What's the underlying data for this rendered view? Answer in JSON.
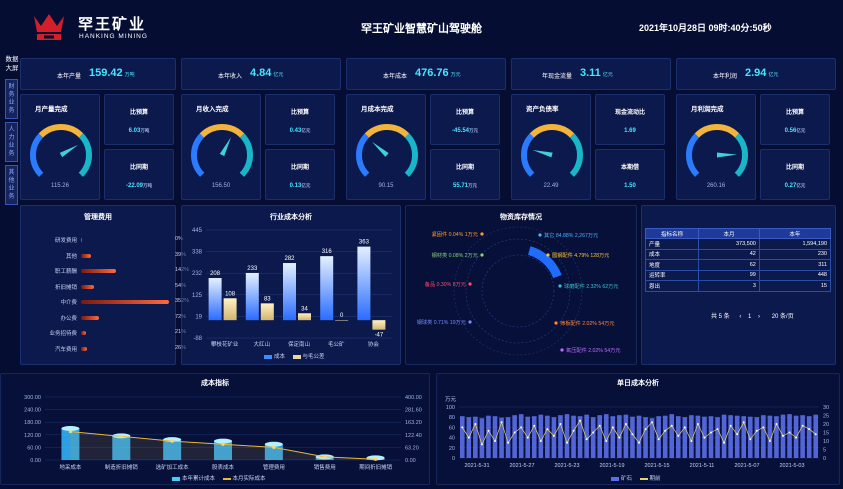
{
  "header": {
    "brand_cn": "罕王矿业",
    "brand_en": "HANKING MINING",
    "title": "罕王矿业智慧矿山驾驶舱",
    "datetime": "2021年10月28日 09时:40分:50秒"
  },
  "sidenav": {
    "title": "数据大屏",
    "tabs": [
      "财务业务",
      "人力业务",
      "其他业务"
    ]
  },
  "kpis": [
    {
      "label": "本年产量",
      "value": "159.42",
      "unit": "万吨"
    },
    {
      "label": "本年收入",
      "value": "4.84",
      "unit": "亿元"
    },
    {
      "label": "本年成本",
      "value": "476.76",
      "unit": "万元"
    },
    {
      "label": "年现金流量",
      "value": "3.11",
      "unit": "亿元"
    },
    {
      "label": "本年利润",
      "value": "2.94",
      "unit": "亿元"
    }
  ],
  "gauges": [
    {
      "title": "月产量完成",
      "value": "115.26",
      "pct": 0.72
    },
    {
      "title": "月收入完成",
      "value": "156.50",
      "pct": 0.6
    },
    {
      "title": "月成本完成",
      "value": "90.15",
      "pct": 0.32
    },
    {
      "title": "资产负债率",
      "value": "22.49",
      "pct": 0.22
    },
    {
      "title": "月利润完成",
      "value": "260.16",
      "pct": 0.83
    }
  ],
  "comparisons": [
    {
      "top": {
        "label": "比预算",
        "value": "6.03",
        "unit": "万吨"
      },
      "bottom": {
        "label": "比同期",
        "value": "-22.09",
        "unit": "万吨"
      }
    },
    {
      "top": {
        "label": "比预算",
        "value": "0.43",
        "unit": "亿元"
      },
      "bottom": {
        "label": "比同期",
        "value": "0.13",
        "unit": "亿元"
      }
    },
    {
      "top": {
        "label": "比预算",
        "value": "-45.54",
        "unit": "万元"
      },
      "bottom": {
        "label": "比同期",
        "value": "55.71",
        "unit": "万元"
      }
    },
    {
      "top": {
        "label": "现金流动比",
        "value": "1.69",
        "unit": ""
      },
      "bottom": {
        "label": "本期借",
        "value": "1.50",
        "unit": ""
      }
    },
    {
      "top": {
        "label": "比预算",
        "value": "0.56",
        "unit": "亿元"
      },
      "bottom": {
        "label": "比同期",
        "value": "0.27",
        "unit": "亿元"
      }
    }
  ],
  "mgmt": {
    "title": "管理费用",
    "rows": [
      {
        "label": "研发费用",
        "pct": "0%",
        "frac": 0
      },
      {
        "label": "其他",
        "pct": "39%",
        "frac": 0.11
      },
      {
        "label": "职工薪酬",
        "pct": "142%",
        "frac": 0.4
      },
      {
        "label": "折旧摊销",
        "pct": "54%",
        "frac": 0.15
      },
      {
        "label": "中介费",
        "pct": "352%",
        "frac": 1.0
      },
      {
        "label": "办公费",
        "pct": "72%",
        "frac": 0.2
      },
      {
        "label": "业务招待费",
        "pct": "21%",
        "frac": 0.06
      },
      {
        "label": "汽车费用",
        "pct": "26%",
        "frac": 0.07
      }
    ]
  },
  "industry_legend": [
    "成本",
    "与毛公差"
  ],
  "inventory": {
    "title": "物资库存情况",
    "labels": [
      "紧固件 0.04% 1万元",
      "其它 84.88% 2,267万元",
      "钢材类 0.08% 2万元",
      "圆钢配件 4.79% 128万元",
      "备品 0.30% 8万元",
      "球磨配件 2.32% 62万元",
      "钢球类 0.71% 19万元",
      "筛板配件 2.02% 54万元",
      "氧压配件 2.02% 54万元"
    ]
  },
  "index_table": {
    "headers": [
      "指标名称",
      "本月",
      "本年"
    ],
    "rows": [
      [
        "产量",
        "373,500",
        "1,594,190"
      ],
      [
        "成本",
        "42",
        "230"
      ],
      [
        "地度",
        "62",
        "311"
      ],
      [
        "运转率",
        "99",
        "448"
      ],
      [
        "恩出",
        "3",
        "15"
      ]
    ],
    "pager": {
      "total": "共 5 条",
      "page": "1",
      "size": "20 条/页"
    }
  },
  "cost_legend": [
    "本年累计成本",
    "本月实际成本"
  ],
  "ore_legend": [
    "矿石",
    "期前"
  ],
  "chart_data": [
    {
      "type": "bar",
      "title": "行业成本分析",
      "categories": [
        "攀枝花矿业",
        "大红山",
        "保定南山",
        "毛公矿",
        "协会"
      ],
      "series": [
        {
          "name": "成本",
          "values": [
            208,
            233,
            282,
            316,
            363
          ]
        },
        {
          "name": "与毛公差",
          "values": [
            108,
            83,
            34,
            0,
            -47
          ]
        }
      ],
      "yticks": [
        "445",
        "338",
        "232",
        "125",
        "19",
        "-88"
      ],
      "ylim": [
        -88,
        445
      ]
    },
    {
      "type": "bar",
      "title": "成本指标",
      "categories": [
        "地采成本",
        "制造折旧摊销",
        "选矿加工成本",
        "股表成本",
        "管理费用",
        "销售费用",
        "期间折旧摊销"
      ],
      "series": [
        {
          "name": "本年累计成本",
          "values": [
            150,
            115,
            97,
            90,
            75,
            15,
            10
          ]
        },
        {
          "name": "本月实际成本",
          "values": [
            180,
            150,
            120,
            100,
            80,
            20,
            5
          ]
        }
      ],
      "yticks_left": [
        "300.00",
        "240.00",
        "180.00",
        "120.00",
        "60.00",
        "0.00"
      ],
      "yticks_right": [
        "400.00",
        "281.60",
        "163.20",
        "122.40",
        "63.20",
        "0.00"
      ]
    },
    {
      "type": "bar",
      "title": "单日成本分析",
      "y_unit": "万元",
      "x_labels": [
        "2021-5-31",
        "2021-5-27",
        "2021-5-23",
        "2021-5-19",
        "2021-5-15",
        "2021-5-11",
        "2021-5-07",
        "2021-5-03"
      ],
      "yticks_left": [
        "100",
        "80",
        "60",
        "40",
        "20",
        "0"
      ],
      "yticks_right": [
        "30",
        "25",
        "20",
        "15",
        "10",
        "5",
        "0"
      ],
      "series": [
        {
          "name": "矿石",
          "values": [
            82,
            80,
            81,
            78,
            83,
            82,
            79,
            80,
            84,
            86,
            81,
            82,
            85,
            83,
            80,
            84,
            86,
            83,
            82,
            85,
            80,
            84,
            86,
            82,
            84,
            85,
            81,
            83,
            80,
            78,
            82,
            83,
            86,
            82,
            80,
            84,
            83,
            81,
            82,
            80,
            85,
            84,
            83,
            82,
            81,
            80,
            84,
            83,
            82,
            85,
            86,
            83,
            84,
            82,
            85
          ]
        },
        {
          "name": "期前",
          "values": [
            18,
            12,
            20,
            8,
            16,
            10,
            21,
            9,
            15,
            18,
            12,
            19,
            10,
            17,
            13,
            20,
            9,
            16,
            22,
            11,
            15,
            19,
            10,
            18,
            12,
            20,
            14,
            9,
            17,
            21,
            11,
            16,
            19,
            13,
            18,
            10,
            20,
            12,
            15,
            17,
            9,
            19,
            14,
            21,
            11,
            16,
            18,
            10,
            20,
            13,
            15,
            12,
            19,
            17,
            14
          ]
        }
      ]
    }
  ]
}
